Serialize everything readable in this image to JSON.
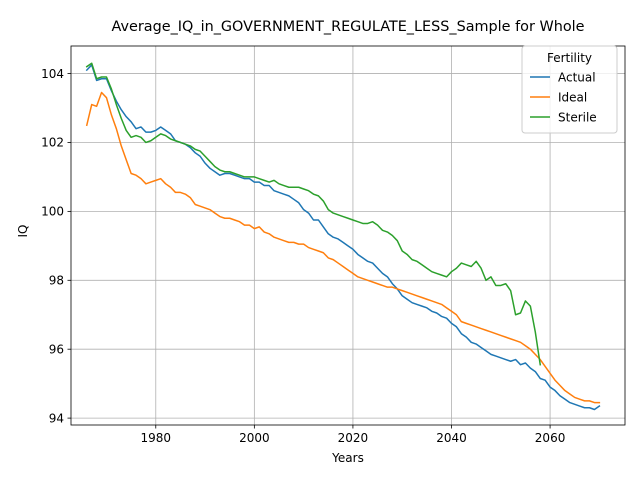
{
  "chart_data": {
    "type": "line",
    "title": "Average_IQ_in_GOVERNMENT_REGULATE_LESS_Sample for Whole",
    "xlabel": "Years",
    "ylabel": "IQ",
    "xlim": [
      1962.8,
      2075.2
    ],
    "ylim": [
      93.8,
      104.8
    ],
    "xticks": [
      1980,
      2000,
      2020,
      2040,
      2060
    ],
    "yticks": [
      94,
      96,
      98,
      100,
      102,
      104
    ],
    "grid": true,
    "legend": {
      "title": "Fertility",
      "placement": "top-right"
    },
    "colors": {
      "Actual": "#1f77b4",
      "Ideal": "#ff7f0e",
      "Sterile": "#2ca02c"
    },
    "series": [
      {
        "name": "Actual",
        "x": [
          1966,
          1967,
          1968,
          1969,
          1970,
          1971,
          1972,
          1973,
          1974,
          1975,
          1976,
          1977,
          1978,
          1979,
          1980,
          1981,
          1982,
          1983,
          1984,
          1985,
          1986,
          1987,
          1988,
          1989,
          1990,
          1991,
          1992,
          1993,
          1994,
          1995,
          1996,
          1997,
          1998,
          1999,
          2000,
          2001,
          2002,
          2003,
          2004,
          2005,
          2006,
          2007,
          2008,
          2009,
          2010,
          2011,
          2012,
          2013,
          2014,
          2015,
          2016,
          2017,
          2018,
          2019,
          2020,
          2021,
          2022,
          2023,
          2024,
          2025,
          2026,
          2027,
          2028,
          2029,
          2030,
          2031,
          2032,
          2033,
          2034,
          2035,
          2036,
          2037,
          2038,
          2039,
          2040,
          2041,
          2042,
          2043,
          2044,
          2045,
          2046,
          2047,
          2048,
          2049,
          2050,
          2051,
          2052,
          2053,
          2054,
          2055,
          2056,
          2057,
          2058,
          2059,
          2060,
          2061,
          2062,
          2063,
          2064,
          2065,
          2066,
          2067,
          2068,
          2069,
          2070
        ],
        "values": [
          104.1,
          104.25,
          103.8,
          103.85,
          103.85,
          103.5,
          103.2,
          102.95,
          102.75,
          102.6,
          102.4,
          102.45,
          102.3,
          102.3,
          102.35,
          102.45,
          102.35,
          102.25,
          102.05,
          102.0,
          101.95,
          101.85,
          101.7,
          101.6,
          101.4,
          101.25,
          101.15,
          101.05,
          101.1,
          101.1,
          101.05,
          101.0,
          100.95,
          100.95,
          100.85,
          100.85,
          100.75,
          100.75,
          100.6,
          100.55,
          100.5,
          100.45,
          100.35,
          100.25,
          100.05,
          99.95,
          99.75,
          99.75,
          99.55,
          99.35,
          99.25,
          99.2,
          99.1,
          99.0,
          98.9,
          98.75,
          98.65,
          98.55,
          98.5,
          98.35,
          98.2,
          98.1,
          97.9,
          97.75,
          97.55,
          97.45,
          97.35,
          97.3,
          97.25,
          97.2,
          97.1,
          97.05,
          96.95,
          96.9,
          96.75,
          96.65,
          96.45,
          96.35,
          96.2,
          96.15,
          96.05,
          95.95,
          95.85,
          95.8,
          95.75,
          95.7,
          95.65,
          95.7,
          95.55,
          95.6,
          95.45,
          95.35,
          95.15,
          95.1,
          94.9,
          94.8,
          94.65,
          94.55,
          94.45,
          94.4,
          94.35,
          94.3,
          94.3,
          94.25,
          94.35
        ]
      },
      {
        "name": "Ideal",
        "x": [
          1966,
          1967,
          1968,
          1969,
          1970,
          1971,
          1972,
          1973,
          1974,
          1975,
          1976,
          1977,
          1978,
          1979,
          1980,
          1981,
          1982,
          1983,
          1984,
          1985,
          1986,
          1987,
          1988,
          1989,
          1990,
          1991,
          1992,
          1993,
          1994,
          1995,
          1996,
          1997,
          1998,
          1999,
          2000,
          2001,
          2002,
          2003,
          2004,
          2005,
          2006,
          2007,
          2008,
          2009,
          2010,
          2011,
          2012,
          2013,
          2014,
          2015,
          2016,
          2017,
          2018,
          2019,
          2020,
          2021,
          2022,
          2023,
          2024,
          2025,
          2026,
          2027,
          2028,
          2029,
          2030,
          2031,
          2032,
          2033,
          2034,
          2035,
          2036,
          2037,
          2038,
          2039,
          2040,
          2041,
          2042,
          2043,
          2044,
          2045,
          2046,
          2047,
          2048,
          2049,
          2050,
          2051,
          2052,
          2053,
          2054,
          2055,
          2056,
          2057,
          2058,
          2059,
          2060,
          2061,
          2062,
          2063,
          2064,
          2065,
          2066,
          2067,
          2068,
          2069,
          2070
        ],
        "values": [
          102.5,
          103.1,
          103.05,
          103.45,
          103.3,
          102.8,
          102.4,
          101.9,
          101.5,
          101.1,
          101.05,
          100.95,
          100.8,
          100.85,
          100.9,
          100.95,
          100.8,
          100.7,
          100.55,
          100.55,
          100.5,
          100.4,
          100.2,
          100.15,
          100.1,
          100.05,
          99.95,
          99.85,
          99.8,
          99.8,
          99.75,
          99.7,
          99.6,
          99.6,
          99.5,
          99.55,
          99.4,
          99.35,
          99.25,
          99.2,
          99.15,
          99.1,
          99.1,
          99.05,
          99.05,
          98.95,
          98.9,
          98.85,
          98.8,
          98.65,
          98.6,
          98.5,
          98.4,
          98.3,
          98.2,
          98.1,
          98.05,
          98.0,
          97.95,
          97.9,
          97.85,
          97.8,
          97.8,
          97.75,
          97.7,
          97.65,
          97.6,
          97.55,
          97.5,
          97.45,
          97.4,
          97.35,
          97.3,
          97.2,
          97.1,
          97.0,
          96.8,
          96.75,
          96.7,
          96.65,
          96.6,
          96.55,
          96.5,
          96.45,
          96.4,
          96.35,
          96.3,
          96.25,
          96.2,
          96.1,
          96.0,
          95.85,
          95.7,
          95.5,
          95.3,
          95.1,
          94.95,
          94.8,
          94.7,
          94.6,
          94.55,
          94.5,
          94.5,
          94.45,
          94.45
        ]
      },
      {
        "name": "Sterile",
        "x": [
          1966,
          1967,
          1968,
          1969,
          1970,
          1971,
          1972,
          1973,
          1974,
          1975,
          1976,
          1977,
          1978,
          1979,
          1980,
          1981,
          1982,
          1983,
          1984,
          1985,
          1986,
          1987,
          1988,
          1989,
          1990,
          1991,
          1992,
          1993,
          1994,
          1995,
          1996,
          1997,
          1998,
          1999,
          2000,
          2001,
          2002,
          2003,
          2004,
          2005,
          2006,
          2007,
          2008,
          2009,
          2010,
          2011,
          2012,
          2013,
          2014,
          2015,
          2016,
          2017,
          2018,
          2019,
          2020,
          2021,
          2022,
          2023,
          2024,
          2025,
          2026,
          2027,
          2028,
          2029,
          2030,
          2031,
          2032,
          2033,
          2034,
          2035,
          2036,
          2037,
          2038,
          2039,
          2040,
          2041,
          2042,
          2043,
          2044,
          2045,
          2046,
          2047,
          2048,
          2049,
          2050,
          2051,
          2052,
          2053,
          2054,
          2055,
          2056,
          2057,
          2058
        ],
        "values": [
          104.2,
          104.3,
          103.85,
          103.9,
          103.9,
          103.55,
          103.1,
          102.7,
          102.35,
          102.15,
          102.2,
          102.15,
          102.0,
          102.05,
          102.15,
          102.25,
          102.2,
          102.1,
          102.05,
          102.0,
          101.95,
          101.9,
          101.8,
          101.75,
          101.6,
          101.45,
          101.3,
          101.2,
          101.15,
          101.15,
          101.1,
          101.05,
          101.0,
          101.0,
          101.0,
          100.95,
          100.9,
          100.85,
          100.9,
          100.8,
          100.75,
          100.7,
          100.7,
          100.7,
          100.65,
          100.6,
          100.5,
          100.45,
          100.3,
          100.05,
          99.95,
          99.9,
          99.85,
          99.8,
          99.75,
          99.7,
          99.65,
          99.65,
          99.7,
          99.6,
          99.45,
          99.4,
          99.3,
          99.15,
          98.85,
          98.75,
          98.6,
          98.55,
          98.45,
          98.35,
          98.25,
          98.2,
          98.15,
          98.1,
          98.25,
          98.35,
          98.5,
          98.45,
          98.4,
          98.55,
          98.35,
          98.0,
          98.1,
          97.85,
          97.85,
          97.9,
          97.7,
          97.0,
          97.05,
          97.4,
          97.25,
          96.5,
          95.55
        ]
      }
    ]
  }
}
